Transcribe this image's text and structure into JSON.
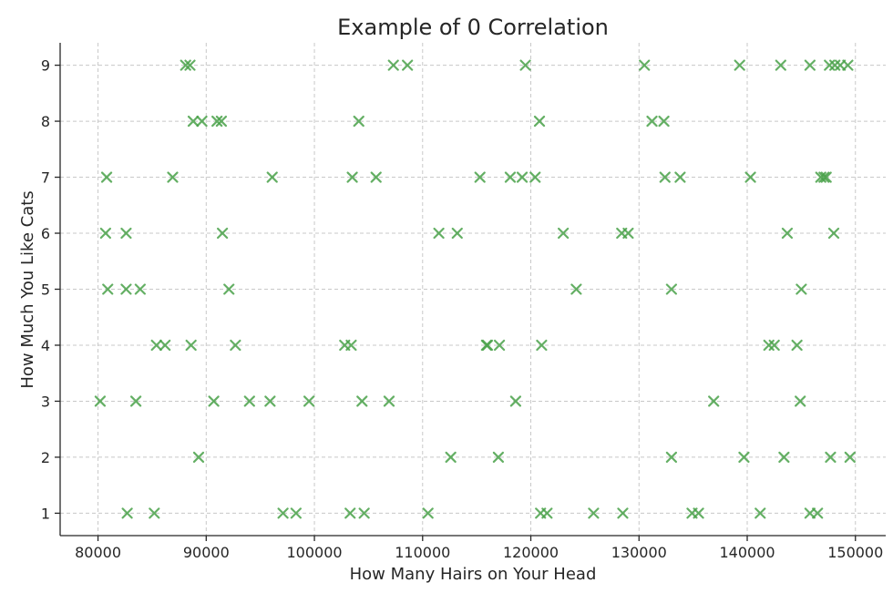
{
  "chart_data": {
    "type": "scatter",
    "title": "Example of 0 Correlation",
    "xlabel": "How Many Hairs on Your Head",
    "ylabel": "How Much You Like Cats",
    "xlim": [
      76500,
      152800
    ],
    "ylim": [
      0.6,
      9.4
    ],
    "xticks": [
      80000,
      90000,
      100000,
      110000,
      120000,
      130000,
      140000,
      150000
    ],
    "yticks": [
      1,
      2,
      3,
      4,
      5,
      6,
      7,
      8,
      9
    ],
    "grid": true,
    "marker": "x",
    "color": "#4aa24a",
    "series": [
      {
        "points": [
          [
            88100,
            9
          ],
          [
            88500,
            9
          ],
          [
            107300,
            9
          ],
          [
            108600,
            9
          ],
          [
            119500,
            9
          ],
          [
            130500,
            9
          ],
          [
            139300,
            9
          ],
          [
            143100,
            9
          ],
          [
            145800,
            9
          ],
          [
            147600,
            9
          ],
          [
            148100,
            9
          ],
          [
            148600,
            9
          ],
          [
            149300,
            9
          ],
          [
            88800,
            8
          ],
          [
            89600,
            8
          ],
          [
            91000,
            8
          ],
          [
            91400,
            8
          ],
          [
            104100,
            8
          ],
          [
            120800,
            8
          ],
          [
            131200,
            8
          ],
          [
            132300,
            8
          ],
          [
            80800,
            7
          ],
          [
            86900,
            7
          ],
          [
            96100,
            7
          ],
          [
            103500,
            7
          ],
          [
            105700,
            7
          ],
          [
            115300,
            7
          ],
          [
            118100,
            7
          ],
          [
            119200,
            7
          ],
          [
            120400,
            7
          ],
          [
            132400,
            7
          ],
          [
            133800,
            7
          ],
          [
            140300,
            7
          ],
          [
            146800,
            7
          ],
          [
            147100,
            7
          ],
          [
            147300,
            7
          ],
          [
            80700,
            6
          ],
          [
            82600,
            6
          ],
          [
            91500,
            6
          ],
          [
            111500,
            6
          ],
          [
            113200,
            6
          ],
          [
            123000,
            6
          ],
          [
            128400,
            6
          ],
          [
            129000,
            6
          ],
          [
            143700,
            6
          ],
          [
            148000,
            6
          ],
          [
            80900,
            5
          ],
          [
            82600,
            5
          ],
          [
            83900,
            5
          ],
          [
            92100,
            5
          ],
          [
            124200,
            5
          ],
          [
            133000,
            5
          ],
          [
            145000,
            5
          ],
          [
            85400,
            4
          ],
          [
            86200,
            4
          ],
          [
            88600,
            4
          ],
          [
            92700,
            4
          ],
          [
            102800,
            4
          ],
          [
            103400,
            4
          ],
          [
            115900,
            4
          ],
          [
            116000,
            4
          ],
          [
            117100,
            4
          ],
          [
            121000,
            4
          ],
          [
            142000,
            4
          ],
          [
            142500,
            4
          ],
          [
            144600,
            4
          ],
          [
            80200,
            3
          ],
          [
            83500,
            3
          ],
          [
            90700,
            3
          ],
          [
            94000,
            3
          ],
          [
            95900,
            3
          ],
          [
            99500,
            3
          ],
          [
            104400,
            3
          ],
          [
            106900,
            3
          ],
          [
            118600,
            3
          ],
          [
            136900,
            3
          ],
          [
            144900,
            3
          ],
          [
            89300,
            2
          ],
          [
            112600,
            2
          ],
          [
            117000,
            2
          ],
          [
            133000,
            2
          ],
          [
            139700,
            2
          ],
          [
            143400,
            2
          ],
          [
            147700,
            2
          ],
          [
            149500,
            2
          ],
          [
            82700,
            1
          ],
          [
            85200,
            1
          ],
          [
            97100,
            1
          ],
          [
            98300,
            1
          ],
          [
            103300,
            1
          ],
          [
            104600,
            1
          ],
          [
            110500,
            1
          ],
          [
            120900,
            1
          ],
          [
            121500,
            1
          ],
          [
            125800,
            1
          ],
          [
            128500,
            1
          ],
          [
            134900,
            1
          ],
          [
            135500,
            1
          ],
          [
            141200,
            1
          ],
          [
            145800,
            1
          ],
          [
            146500,
            1
          ]
        ]
      }
    ]
  }
}
